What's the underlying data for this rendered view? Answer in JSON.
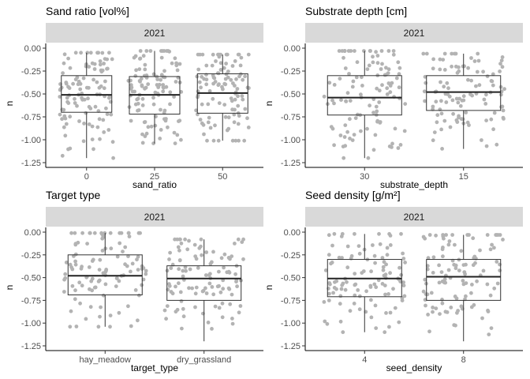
{
  "chart_data": [
    {
      "type": "boxplot",
      "title": "Sand ratio [vol%]",
      "strip": "2021",
      "xlabel": "sand_ratio",
      "ylabel": "n",
      "ylim": [
        -1.25,
        0.0
      ],
      "yticks": [
        "0.00",
        "-0.25",
        "-0.50",
        "-0.75",
        "-1.00",
        "-1.25"
      ],
      "categories": [
        "0",
        "25",
        "50"
      ],
      "boxes": [
        {
          "q1": -0.7,
          "median": -0.51,
          "q3": -0.3,
          "whisker_low": -1.2,
          "whisker_high": -0.05
        },
        {
          "q1": -0.72,
          "median": -0.51,
          "q3": -0.31,
          "whisker_low": -1.04,
          "whisker_high": -0.03
        },
        {
          "q1": -0.71,
          "median": -0.49,
          "q3": -0.28,
          "whisker_low": -1.01,
          "whisker_high": -0.07
        }
      ],
      "point_color": "#b3b3b3"
    },
    {
      "type": "boxplot",
      "title": "Substrate depth [cm]",
      "strip": "2021",
      "xlabel": "substrate_depth",
      "ylabel": "n",
      "ylim": [
        -1.25,
        0.0
      ],
      "yticks": [
        "0.00",
        "-0.25",
        "-0.50",
        "-0.75",
        "-1.00",
        "-1.25"
      ],
      "categories": [
        "30",
        "15"
      ],
      "boxes": [
        {
          "q1": -0.73,
          "median": -0.54,
          "q3": -0.3,
          "whisker_low": -1.2,
          "whisker_high": -0.03
        },
        {
          "q1": -0.68,
          "median": -0.48,
          "q3": -0.3,
          "whisker_low": -1.1,
          "whisker_high": -0.06
        }
      ],
      "point_color": "#b3b3b3"
    },
    {
      "type": "boxplot",
      "title": "Target type",
      "strip": "2021",
      "xlabel": "target_type",
      "ylabel": "n",
      "ylim": [
        -1.25,
        0.0
      ],
      "yticks": [
        "0.00",
        "-0.25",
        "-0.50",
        "-0.75",
        "-1.00",
        "-1.25"
      ],
      "categories": [
        "hay_meadow",
        "dry_grassland"
      ],
      "boxes": [
        {
          "q1": -0.69,
          "median": -0.48,
          "q3": -0.25,
          "whisker_low": -1.04,
          "whisker_high": -0.01
        },
        {
          "q1": -0.75,
          "median": -0.51,
          "q3": -0.37,
          "whisker_low": -1.2,
          "whisker_high": -0.08
        }
      ],
      "point_color": "#b3b3b3"
    },
    {
      "type": "boxplot",
      "title": "Seed density [g/m²]",
      "strip": "2021",
      "xlabel": "seed_density",
      "ylabel": "n",
      "ylim": [
        -1.25,
        0.0
      ],
      "yticks": [
        "0.00",
        "-0.25",
        "-0.50",
        "-0.75",
        "-1.00",
        "-1.25"
      ],
      "categories": [
        "4",
        "8"
      ],
      "boxes": [
        {
          "q1": -0.71,
          "median": -0.51,
          "q3": -0.3,
          "whisker_low": -1.1,
          "whisker_high": -0.02
        },
        {
          "q1": -0.75,
          "median": -0.49,
          "q3": -0.3,
          "whisker_low": -1.2,
          "whisker_high": -0.03
        }
      ],
      "point_color": "#b3b3b3"
    }
  ]
}
